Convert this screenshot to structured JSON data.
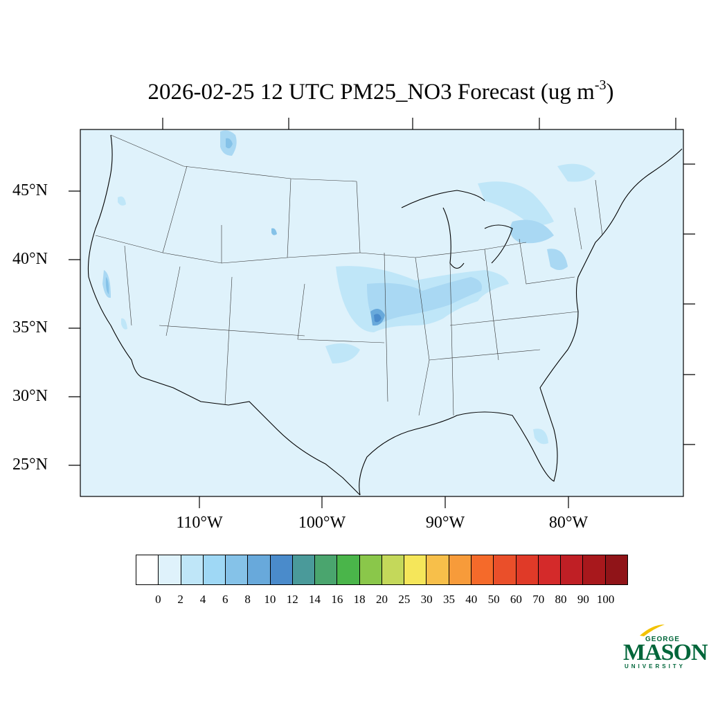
{
  "title": {
    "main": "2026-02-25 12 UTC PM25_NO3 Forecast (ug m",
    "sup": "-3",
    "close": ")"
  },
  "map": {
    "background_color": "#dff2fb",
    "lat_labels": [
      "45°N",
      "40°N",
      "35°N",
      "30°N",
      "25°N"
    ],
    "lon_labels": [
      "110°W",
      "100°W",
      "90°W",
      "80°W"
    ]
  },
  "colorbar": {
    "colors": [
      "#ffffff",
      "#dff2fb",
      "#bfe6f8",
      "#9fd8f5",
      "#85c2e8",
      "#68a9db",
      "#4a8bcb",
      "#4a9a9a",
      "#4aa56e",
      "#4ab54a",
      "#8ac74a",
      "#c4d85a",
      "#f5e65a",
      "#f7bf4a",
      "#f79b3a",
      "#f56a2a",
      "#ea4f2a",
      "#e03a28",
      "#d42a2a",
      "#c01f25",
      "#a8181c",
      "#901418"
    ],
    "labels": [
      "0",
      "2",
      "4",
      "6",
      "8",
      "10",
      "12",
      "14",
      "16",
      "18",
      "20",
      "25",
      "30",
      "35",
      "40",
      "50",
      "60",
      "70",
      "80",
      "90",
      "100"
    ]
  },
  "logo": {
    "george": "GEORGE",
    "mason": "MASON",
    "university": "UNIVERSITY",
    "color": "#00663a",
    "accent": "#f2c200"
  }
}
